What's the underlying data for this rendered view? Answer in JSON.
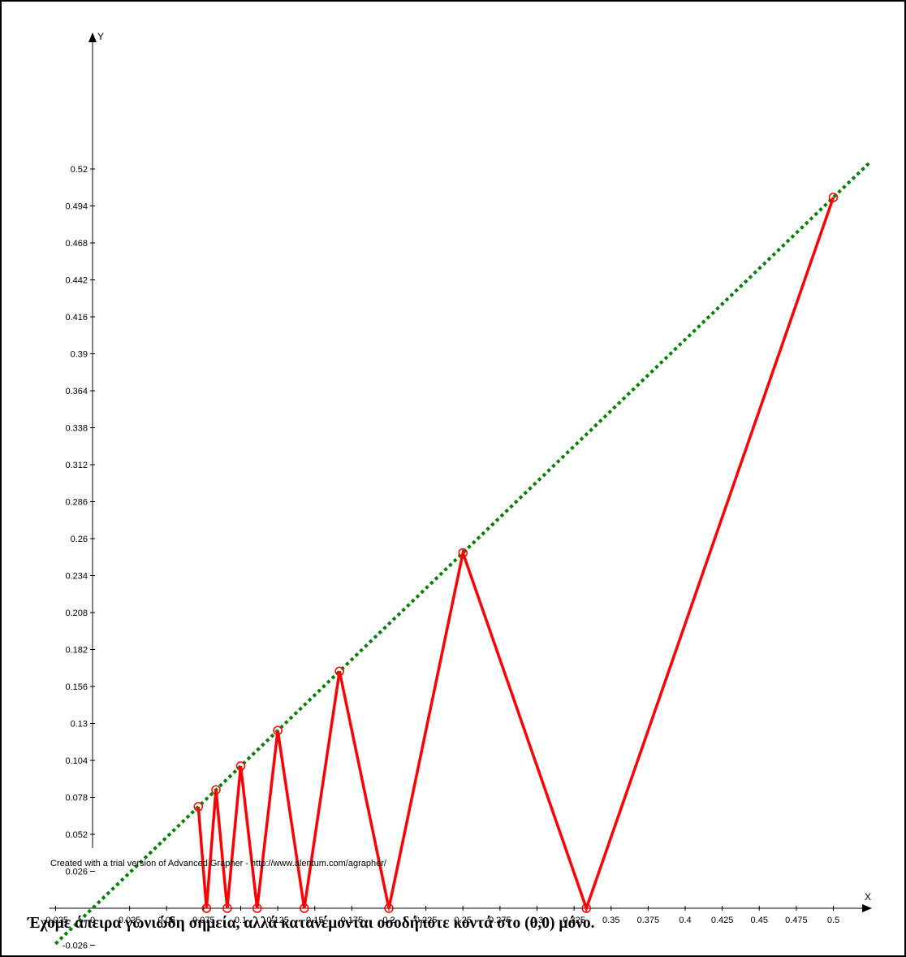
{
  "chart_data": {
    "type": "line",
    "xlabel": "X",
    "ylabel": "Y",
    "xlim": [
      -0.025,
      0.525
    ],
    "ylim": [
      -0.026,
      0.52
    ],
    "x_ticks": [
      "-0.025",
      "0",
      "0.025",
      "0.05",
      "0.075",
      "0.1",
      "0.125",
      "0.15",
      "0.175",
      "0.2",
      "0.225",
      "0.25",
      "0.275",
      "0.3",
      "0.325",
      "0.35",
      "0.375",
      "0.4",
      "0.425",
      "0.45",
      "0.475",
      "0.5"
    ],
    "y_ticks": [
      "-0.026",
      "0.026",
      "0.052",
      "0.078",
      "0.104",
      "0.13",
      "0.156",
      "0.182",
      "0.208",
      "0.234",
      "0.26",
      "0.286",
      "0.312",
      "0.338",
      "0.364",
      "0.39",
      "0.416",
      "0.442",
      "0.468",
      "0.494",
      "0.52"
    ],
    "series": [
      {
        "style": "dotted",
        "color": "#008000",
        "x": [
          -0.025,
          0.525
        ],
        "y": [
          -0.025,
          0.525
        ]
      },
      {
        "style": "solid",
        "color": "#ff0000",
        "x": [
          0.0714,
          0.0769,
          0.0833,
          0.0909,
          0.1,
          0.1111,
          0.125,
          0.1429,
          0.1667,
          0.2,
          0.25,
          0.3333,
          0.5
        ],
        "y": [
          0.0714,
          0,
          0.0833,
          0,
          0.1,
          0,
          0.125,
          0,
          0.1667,
          0,
          0.25,
          0,
          0.5
        ]
      }
    ],
    "markers": {
      "color": "#ff0000",
      "points": [
        [
          0.0714,
          0.0714
        ],
        [
          0.0769,
          0
        ],
        [
          0.0833,
          0.0833
        ],
        [
          0.0909,
          0
        ],
        [
          0.1,
          0.1
        ],
        [
          0.1111,
          0
        ],
        [
          0.125,
          0.125
        ],
        [
          0.1429,
          0
        ],
        [
          0.1667,
          0.1667
        ],
        [
          0.2,
          0
        ],
        [
          0.25,
          0.25
        ],
        [
          0.3333,
          0
        ],
        [
          0.5,
          0.5
        ]
      ]
    }
  },
  "credit": "Created with a trial version of Advanced Grapher - http://www.alentum.com/agrapher/",
  "caption": "Έχομε άπειρα γωνιώδη σημεία, αλλά κατανέμονται οσοδήποτε κοντά στο (0,0) μόνο."
}
